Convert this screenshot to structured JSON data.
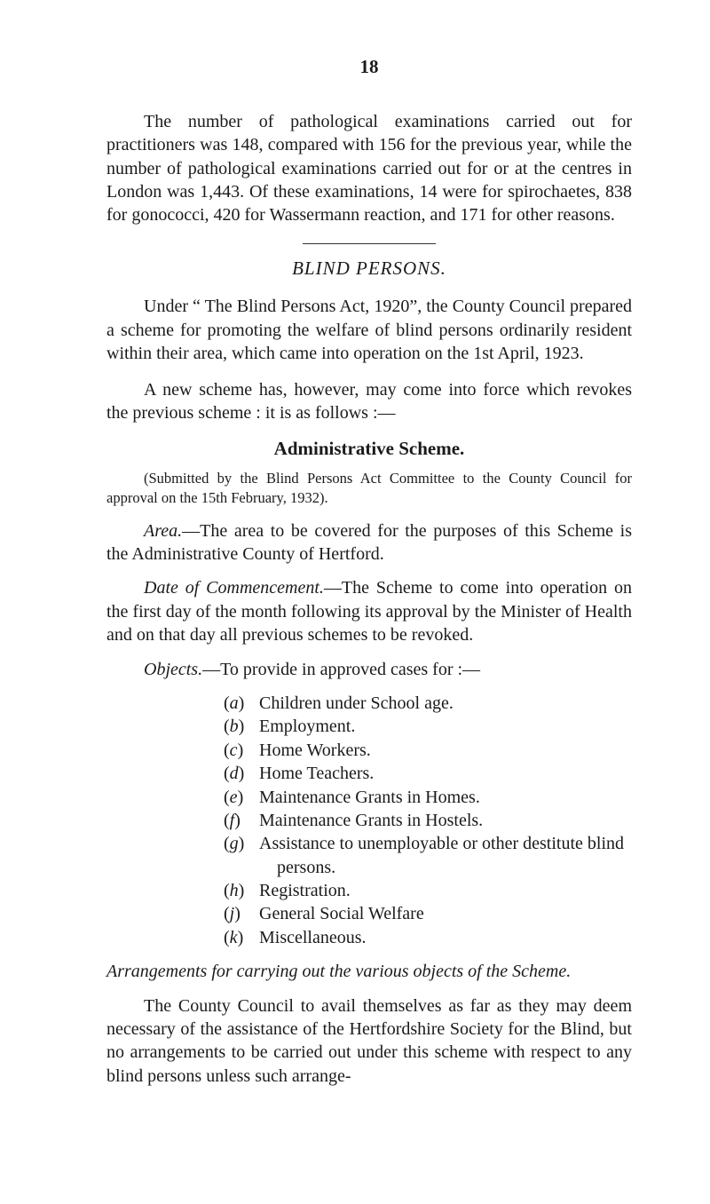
{
  "pageNumber": "18",
  "para1": "The number of pathological examinations carried out for practitioners was 148, compared with 156 for the previous year, while the number of pathological examinations carried out for or at the centres in London was 1,443. Of these examinations, 14 were for spirochaetes, 838 for gonococci, 420 for Wassermann reaction, and 171 for other reasons.",
  "sectionTitle": "BLIND PERSONS.",
  "para2a": "Under “ The Blind Persons Act, 1920”, the County Council prepared a scheme for promoting the welfare of blind persons ordinarily resident within their area, which came into operation on the 1st April, 1923.",
  "para2b": "A new scheme has, however, may come into force which revokes the previous scheme : it is as follows :—",
  "subhead": "Administrative Scheme.",
  "note": "(Submitted by the Blind Persons Act Committee to the County Council for approval on the 15th February, 1932).",
  "area_label": "Area.",
  "area_text": "—The area to be covered for the purposes of this Scheme is the Administrative County of Hertford.",
  "date_label": "Date of Commencement.",
  "date_text": "—The Scheme to come into opera­tion on the first day of the month following its approval by the Minister of Health and on that day all previous schemes to be revoked.",
  "objects_label": "Objects.",
  "objects_lead": "—To provide in approved cases for :—",
  "objects": [
    {
      "label": "(a)",
      "text": "Children under School age."
    },
    {
      "label": "(b)",
      "text": "Employment."
    },
    {
      "label": "(c)",
      "text": "Home Workers."
    },
    {
      "label": "(d)",
      "text": "Home Teachers."
    },
    {
      "label": "(e)",
      "text": "Maintenance Grants in Homes."
    },
    {
      "label": "(f)",
      "text": "Maintenance Grants in Hostels."
    },
    {
      "label": "(g)",
      "text": "Assistance to unemployable or other destitute blind"
    },
    {
      "label": "",
      "text": "persons.",
      "indent": true
    },
    {
      "label": "(h)",
      "text": "Registration."
    },
    {
      "label": "(j)",
      "text": "General Social Welfare"
    },
    {
      "label": "(k)",
      "text": "Miscellaneous."
    }
  ],
  "arrangements_title": "Arrangements for carrying out the various objects of the Scheme.",
  "para_last": "The County Council to avail themselves as far as they may deem necessary of the assistance of the Hertfordshire Society for the Blind, but no arrangements to be carried out under this scheme with respect to any blind persons unless such arrange-"
}
